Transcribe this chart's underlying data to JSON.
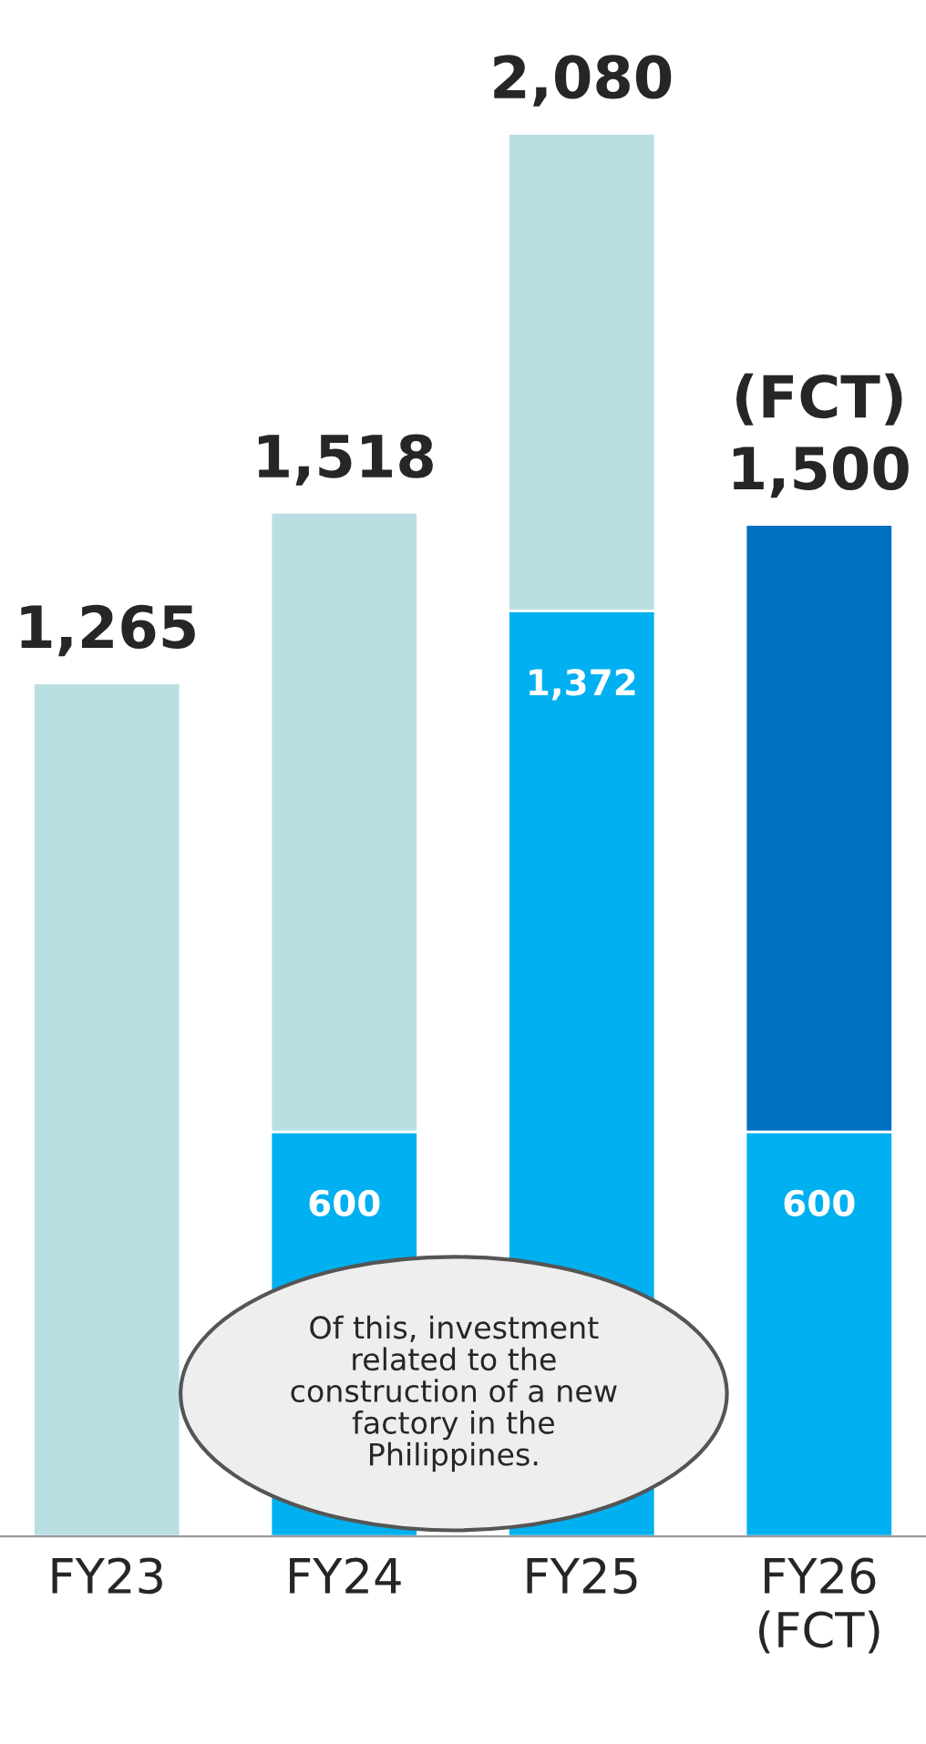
{
  "chart_data": {
    "type": "bar",
    "stacked": true,
    "categories": [
      "FY23",
      "FY24",
      "FY25",
      "FY26\n(FCT)"
    ],
    "series": [
      {
        "color": "#00b0f0",
        "values": [
          null,
          600,
          1372,
          600
        ],
        "value_labels": [
          null,
          "600",
          "1,372",
          "600"
        ]
      },
      {
        "color": "#b9dfe3",
        "values": [
          1265,
          918,
          708,
          null
        ]
      },
      {
        "color": "#0070c0",
        "values": [
          null,
          null,
          null,
          900
        ]
      }
    ],
    "totals": [
      "1,265",
      "1,518",
      "2,080",
      "(FCT)\n1,500"
    ],
    "annotations": [
      "Of this, investment\nrelated to the\nconstruction of a new\nfactory in the\nPhilippines."
    ]
  }
}
